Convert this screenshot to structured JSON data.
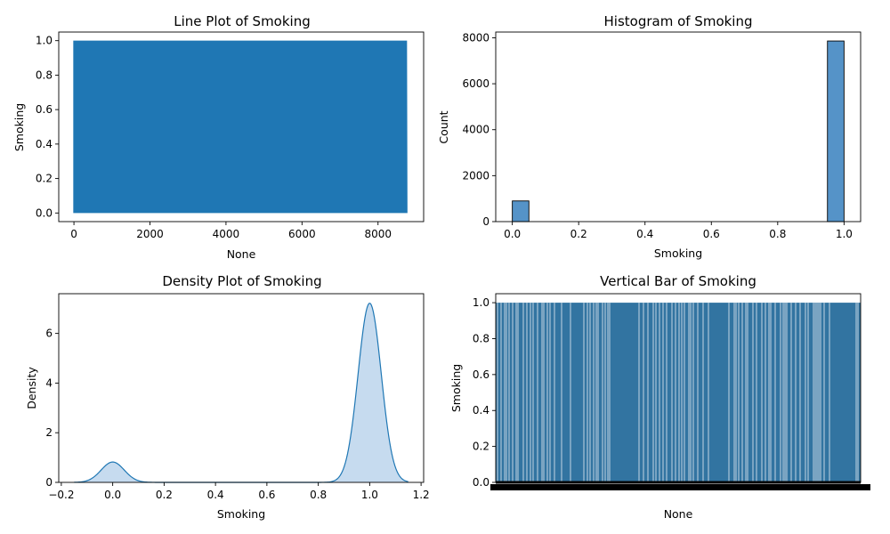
{
  "chart_data": [
    {
      "type": "line",
      "title": "Line Plot of Smoking",
      "xlabel": "None",
      "ylabel": "Smoking",
      "xlim": [
        -400,
        9200
      ],
      "ylim": [
        -0.05,
        1.05
      ],
      "xticks": [
        0,
        2000,
        4000,
        6000,
        8000
      ],
      "xtick_labels": [
        "0",
        "2000",
        "4000",
        "6000",
        "8000"
      ],
      "yticks": [
        0,
        0.2,
        0.4,
        0.6,
        0.8,
        1.0
      ],
      "ytick_labels": [
        "0.0",
        "0.2",
        "0.4",
        "0.6",
        "0.8",
        "1.0"
      ],
      "x_range": [
        0,
        8760
      ],
      "y_values": [
        0,
        1
      ],
      "color": "#1f77b4",
      "grid": false
    },
    {
      "type": "bar",
      "title": "Histogram of Smoking",
      "xlabel": "Smoking",
      "ylabel": "Count",
      "xlim": [
        -0.05,
        1.05
      ],
      "ylim": [
        0,
        8250
      ],
      "xticks": [
        0,
        0.2,
        0.4,
        0.6,
        0.8,
        1.0
      ],
      "xtick_labels": [
        "0.0",
        "0.2",
        "0.4",
        "0.6",
        "0.8",
        "1.0"
      ],
      "yticks": [
        0,
        2000,
        4000,
        6000,
        8000
      ],
      "ytick_labels": [
        "0",
        "2000",
        "4000",
        "6000",
        "8000"
      ],
      "bins": [
        {
          "x0": 0.0,
          "x1": 0.05,
          "count": 900
        },
        {
          "x0": 0.95,
          "x1": 1.0,
          "count": 7860
        }
      ],
      "color": "#5593c8",
      "grid": false
    },
    {
      "type": "area",
      "title": "Density Plot of Smoking",
      "xlabel": "Smoking",
      "ylabel": "Density",
      "xlim": [
        -0.21,
        1.21
      ],
      "ylim": [
        0,
        7.6
      ],
      "xticks": [
        -0.2,
        0,
        0.2,
        0.4,
        0.6,
        0.8,
        1.0,
        1.2
      ],
      "xtick_labels": [
        "−0.2",
        "0.0",
        "0.2",
        "0.4",
        "0.6",
        "0.8",
        "1.0",
        "1.2"
      ],
      "yticks": [
        0,
        2,
        4,
        6
      ],
      "ytick_labels": [
        "0",
        "2",
        "4",
        "6"
      ],
      "x_range": [
        -0.15,
        1.15
      ],
      "components": [
        {
          "mean": 0.0,
          "peak": 0.82,
          "sd": 0.045
        },
        {
          "mean": 1.0,
          "peak": 7.22,
          "sd": 0.045
        }
      ],
      "color": "#1f77b4",
      "fill": "#c6dbef",
      "grid": false
    },
    {
      "type": "bar",
      "title": "Vertical Bar of Smoking",
      "xlabel": "None",
      "ylabel": "Smoking",
      "ylim": [
        0,
        1.05
      ],
      "yticks": [
        0,
        0.2,
        0.4,
        0.6,
        0.8,
        1.0
      ],
      "ytick_labels": [
        "0.0",
        "0.2",
        "0.4",
        "0.6",
        "0.8",
        "1.0"
      ],
      "category_count": 8760,
      "values_description_note": "",
      "values_pattern": [
        1
      ],
      "color": "#3274a1",
      "grid": false
    }
  ]
}
